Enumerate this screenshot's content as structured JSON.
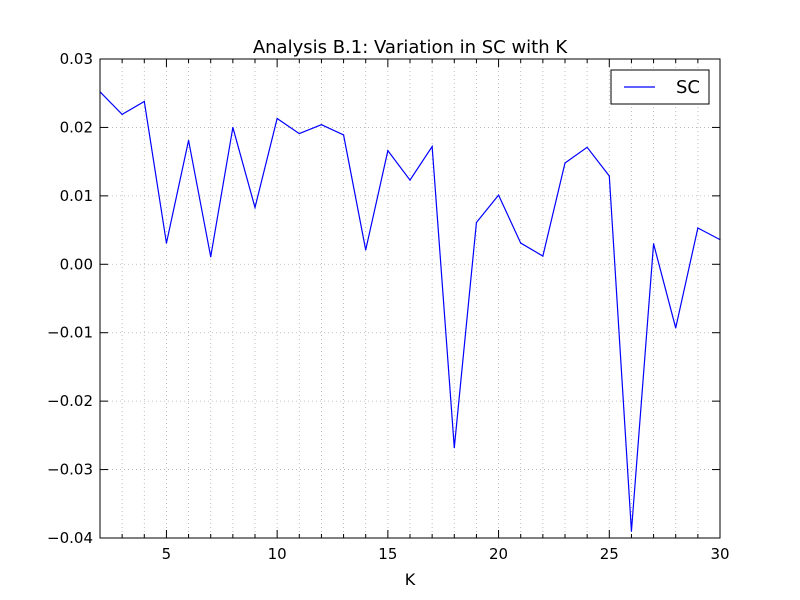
{
  "chart_data": {
    "type": "line",
    "title": "Analysis B.1: Variation in SC with K",
    "xlabel": "K",
    "ylabel": "",
    "xlim": [
      2,
      30
    ],
    "ylim": [
      -0.04,
      0.03
    ],
    "x_ticks": [
      5,
      10,
      15,
      20,
      25,
      30
    ],
    "y_ticks": [
      -0.04,
      -0.03,
      -0.02,
      -0.01,
      0.0,
      0.01,
      0.02,
      0.03
    ],
    "y_tick_labels": [
      "−0.04",
      "−0.03",
      "−0.02",
      "−0.01",
      "0.00",
      "0.01",
      "0.02",
      "0.03"
    ],
    "grid": true,
    "legend": "top-right",
    "series": [
      {
        "name": "SC",
        "color": "#0000ff",
        "x": [
          2,
          3,
          4,
          5,
          6,
          7,
          8,
          9,
          10,
          11,
          12,
          13,
          14,
          15,
          16,
          17,
          18,
          19,
          20,
          21,
          22,
          23,
          24,
          25,
          26,
          27,
          28,
          29,
          30
        ],
        "y": [
          0.0252,
          0.0219,
          0.0238,
          0.0031,
          0.0181,
          0.0011,
          0.02,
          0.0083,
          0.0213,
          0.0191,
          0.0204,
          0.0189,
          0.0021,
          0.0166,
          0.0123,
          0.0172,
          -0.0268,
          0.0061,
          0.0101,
          0.0031,
          0.0012,
          0.0148,
          0.0171,
          0.0129,
          -0.039,
          0.003,
          -0.0093,
          0.0053,
          0.0036
        ]
      }
    ]
  }
}
